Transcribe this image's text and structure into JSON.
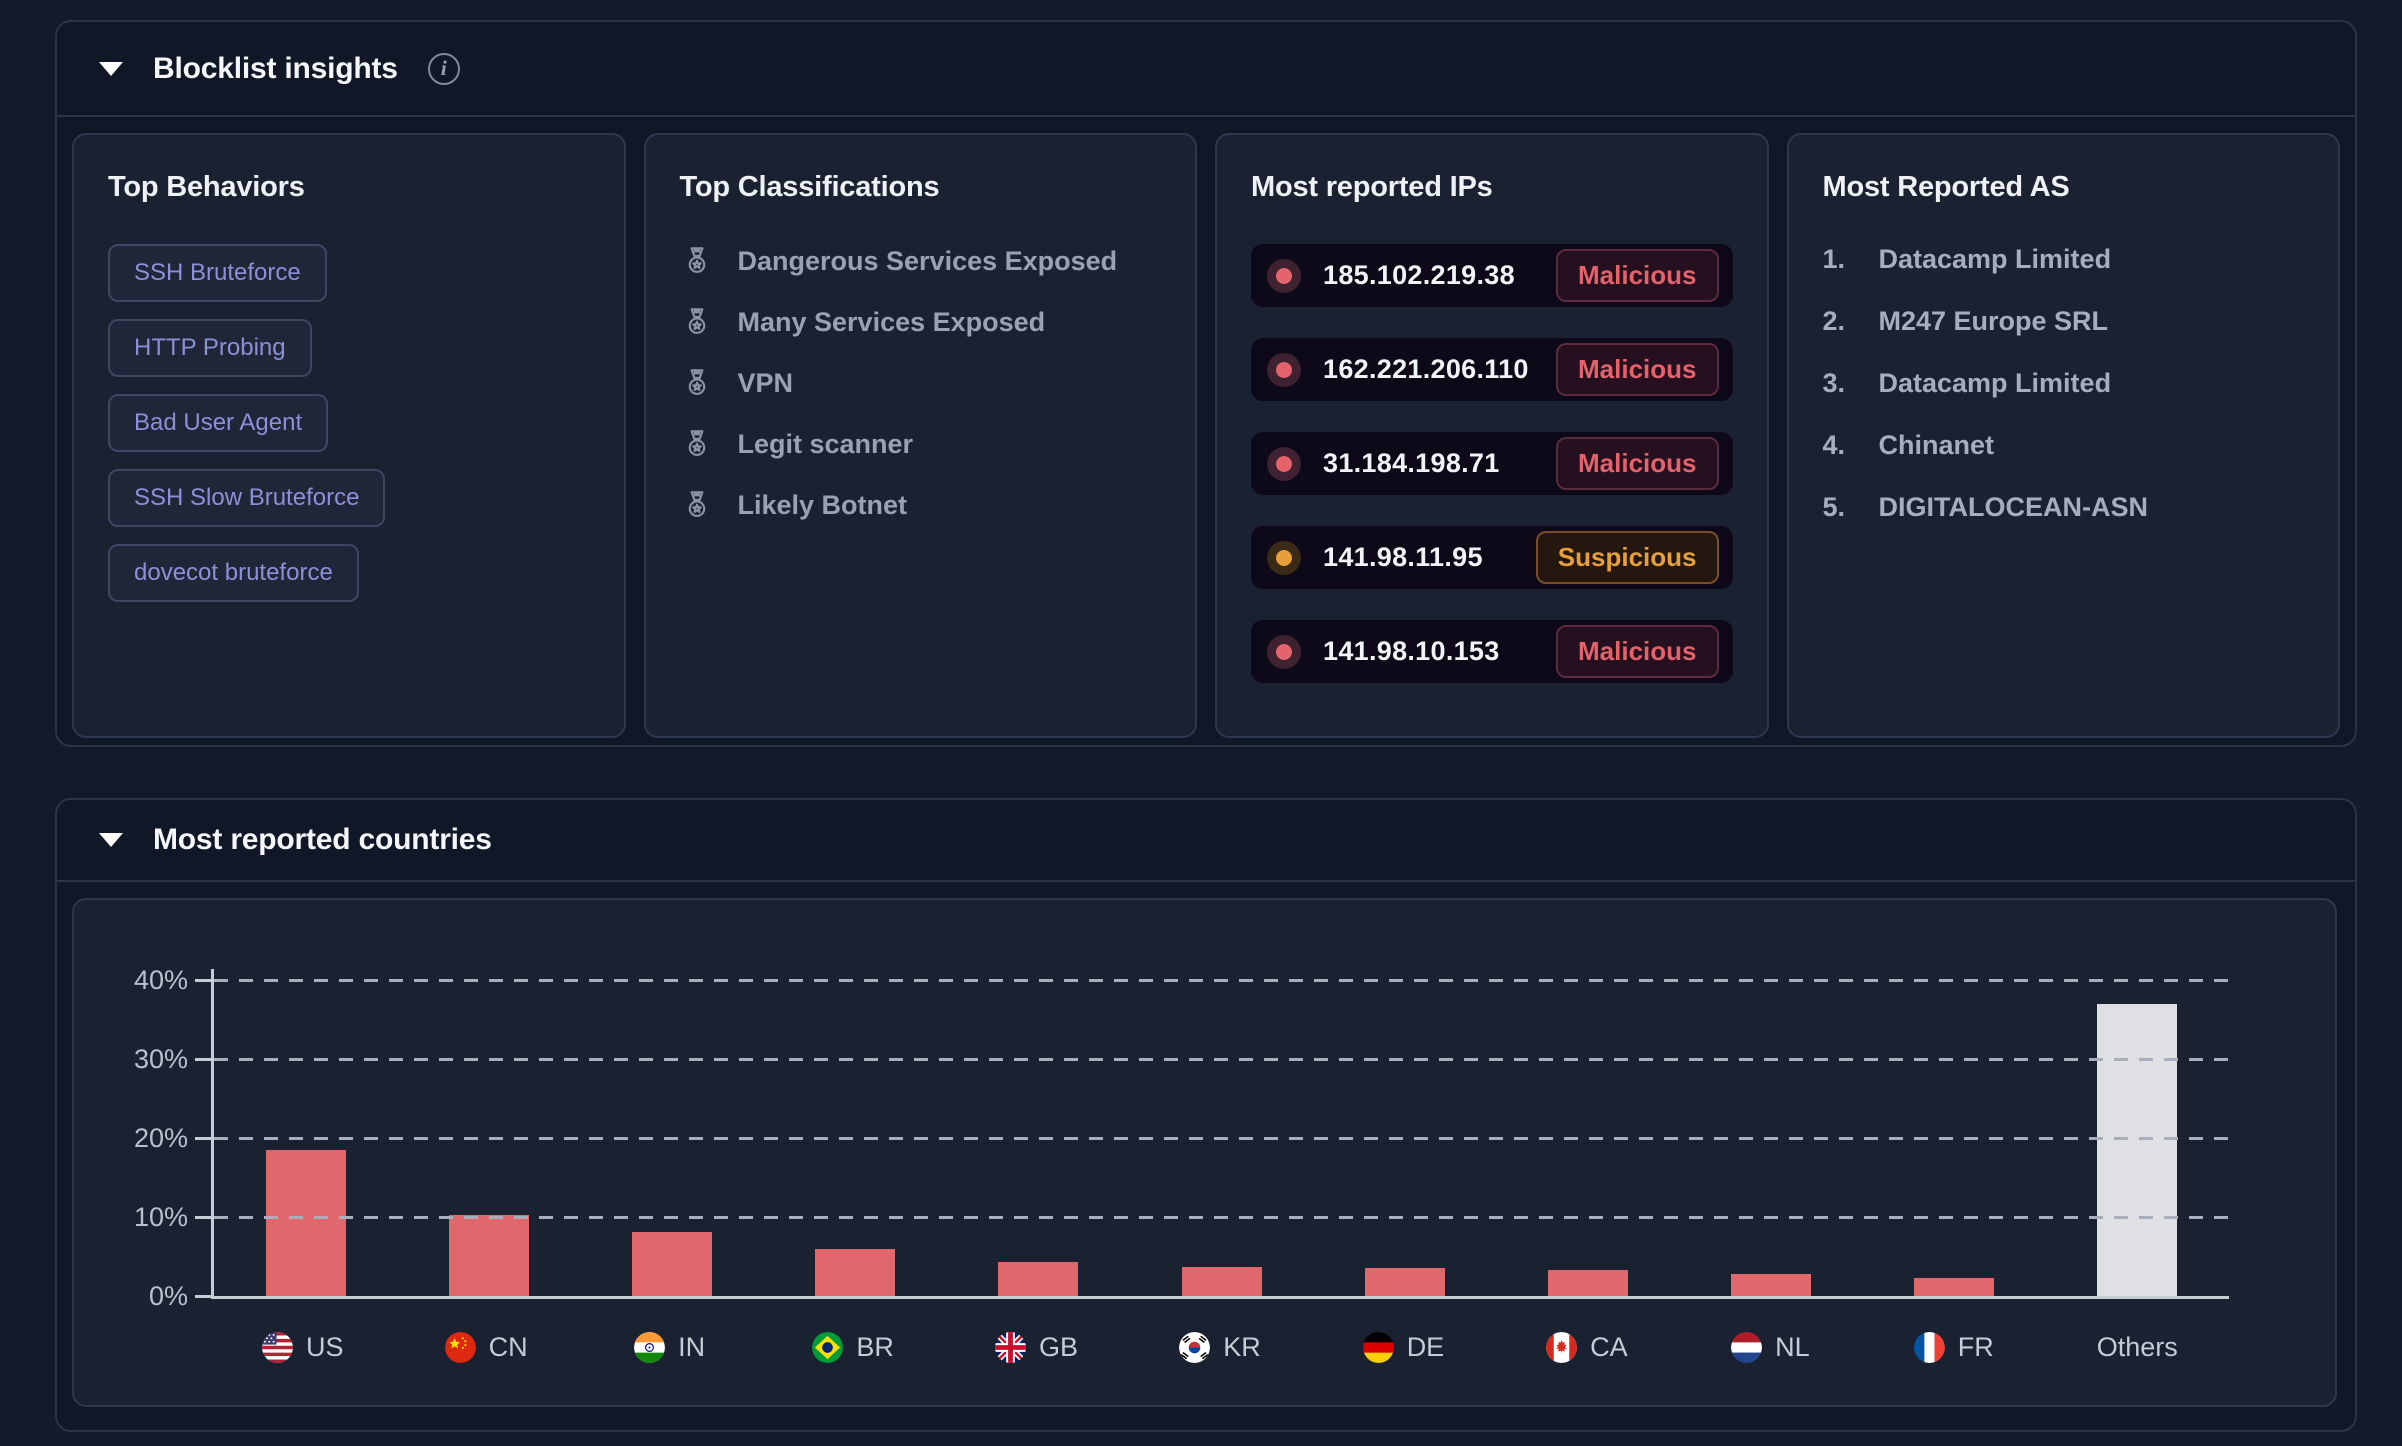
{
  "blocklist": {
    "title": "Blocklist insights",
    "behaviors": {
      "title": "Top Behaviors",
      "tags": [
        "SSH Bruteforce",
        "HTTP Probing",
        "Bad User Agent",
        "SSH Slow Bruteforce",
        "dovecot bruteforce"
      ]
    },
    "classifications": {
      "title": "Top Classifications",
      "icon": "medal-icon",
      "items": [
        "Dangerous Services Exposed",
        "Many Services Exposed",
        "VPN",
        "Legit scanner",
        "Likely Botnet"
      ]
    },
    "ips": {
      "title": "Most reported IPs",
      "rows": [
        {
          "ip": "185.102.219.38",
          "status": "Malicious"
        },
        {
          "ip": "162.221.206.110",
          "status": "Malicious"
        },
        {
          "ip": "31.184.198.71",
          "status": "Malicious"
        },
        {
          "ip": "141.98.11.95",
          "status": "Suspicious"
        },
        {
          "ip": "141.98.10.153",
          "status": "Malicious"
        }
      ]
    },
    "as": {
      "title": "Most Reported AS",
      "items": [
        "Datacamp Limited",
        "M247 Europe SRL",
        "Datacamp Limited",
        "Chinanet",
        "DIGITALOCEAN-ASN"
      ]
    }
  },
  "countries": {
    "title": "Most reported countries"
  },
  "chart_data": {
    "type": "bar",
    "title": "Most reported countries",
    "categories": [
      "US",
      "CN",
      "IN",
      "BR",
      "GB",
      "KR",
      "DE",
      "CA",
      "NL",
      "FR",
      "Others"
    ],
    "values": [
      18.5,
      10.3,
      8.1,
      6.0,
      4.3,
      3.7,
      3.6,
      3.3,
      2.8,
      2.3,
      37.0
    ],
    "xlabel": "",
    "ylabel": "",
    "ylim": [
      0,
      40
    ],
    "yticks": [
      "0%",
      "10%",
      "20%",
      "30%",
      "40%"
    ],
    "ytick_values": [
      0,
      10,
      20,
      30,
      40
    ],
    "grid": "horizontal-dashed",
    "legend": null,
    "flag_icons": [
      "us-flag-icon",
      "cn-flag-icon",
      "in-flag-icon",
      "br-flag-icon",
      "gb-flag-icon",
      "kr-flag-icon",
      "de-flag-icon",
      "ca-flag-icon",
      "nl-flag-icon",
      "fr-flag-icon"
    ]
  },
  "icons": {
    "collapse": "triangle-down-icon",
    "info": "info-icon",
    "classification": "medal-icon",
    "ip_status": "status-dot-icon"
  },
  "colors": {
    "malicious": "#e4626b",
    "suspicious": "#e79f3c",
    "tag_text": "#8c90d8",
    "bar": "#e0676c",
    "others_bar": "#dfe0e3"
  }
}
